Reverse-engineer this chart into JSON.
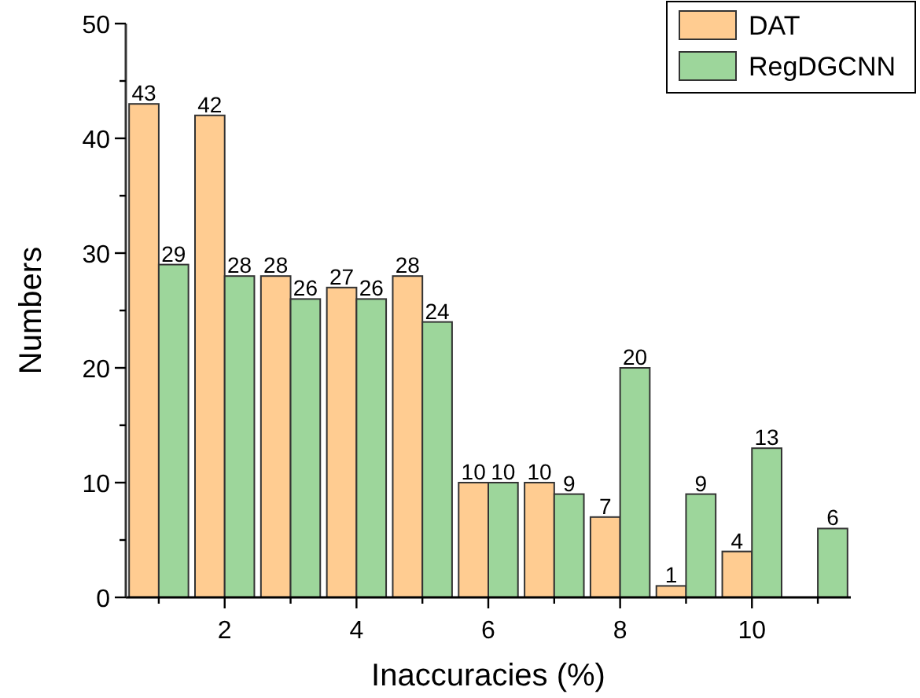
{
  "chart_data": {
    "type": "bar",
    "xlabel": "Inaccuracies (%)",
    "ylabel": "Numbers",
    "x": [
      1,
      2,
      3,
      4,
      5,
      6,
      7,
      8,
      9,
      10,
      11
    ],
    "series": [
      {
        "name": "DAT",
        "color": "#ffcc91",
        "values": [
          43,
          42,
          28,
          27,
          28,
          10,
          10,
          7,
          1,
          4,
          null
        ]
      },
      {
        "name": "RegDGCNN",
        "color": "#9dd69b",
        "values": [
          29,
          28,
          26,
          26,
          24,
          10,
          9,
          20,
          9,
          13,
          6
        ]
      }
    ],
    "xlim": [
      0.5,
      11.5
    ],
    "xticks": [
      {
        "value": 1,
        "label": null
      },
      2,
      {
        "value": 3,
        "label": null
      },
      4,
      {
        "value": 5,
        "label": null
      },
      6,
      {
        "value": 7,
        "label": null
      },
      8,
      {
        "value": 9,
        "label": null
      },
      10,
      {
        "value": 11,
        "label": null
      }
    ],
    "ylim": [
      0,
      50
    ],
    "yticks": [
      0,
      {
        "value": 5,
        "label": null
      },
      10,
      {
        "value": 15,
        "label": null
      },
      20,
      {
        "value": 25,
        "label": null
      },
      30,
      {
        "value": 35,
        "label": null
      },
      40,
      {
        "value": 45,
        "label": null
      },
      50
    ],
    "data_labels": true,
    "legend": "top right",
    "grid": false
  }
}
